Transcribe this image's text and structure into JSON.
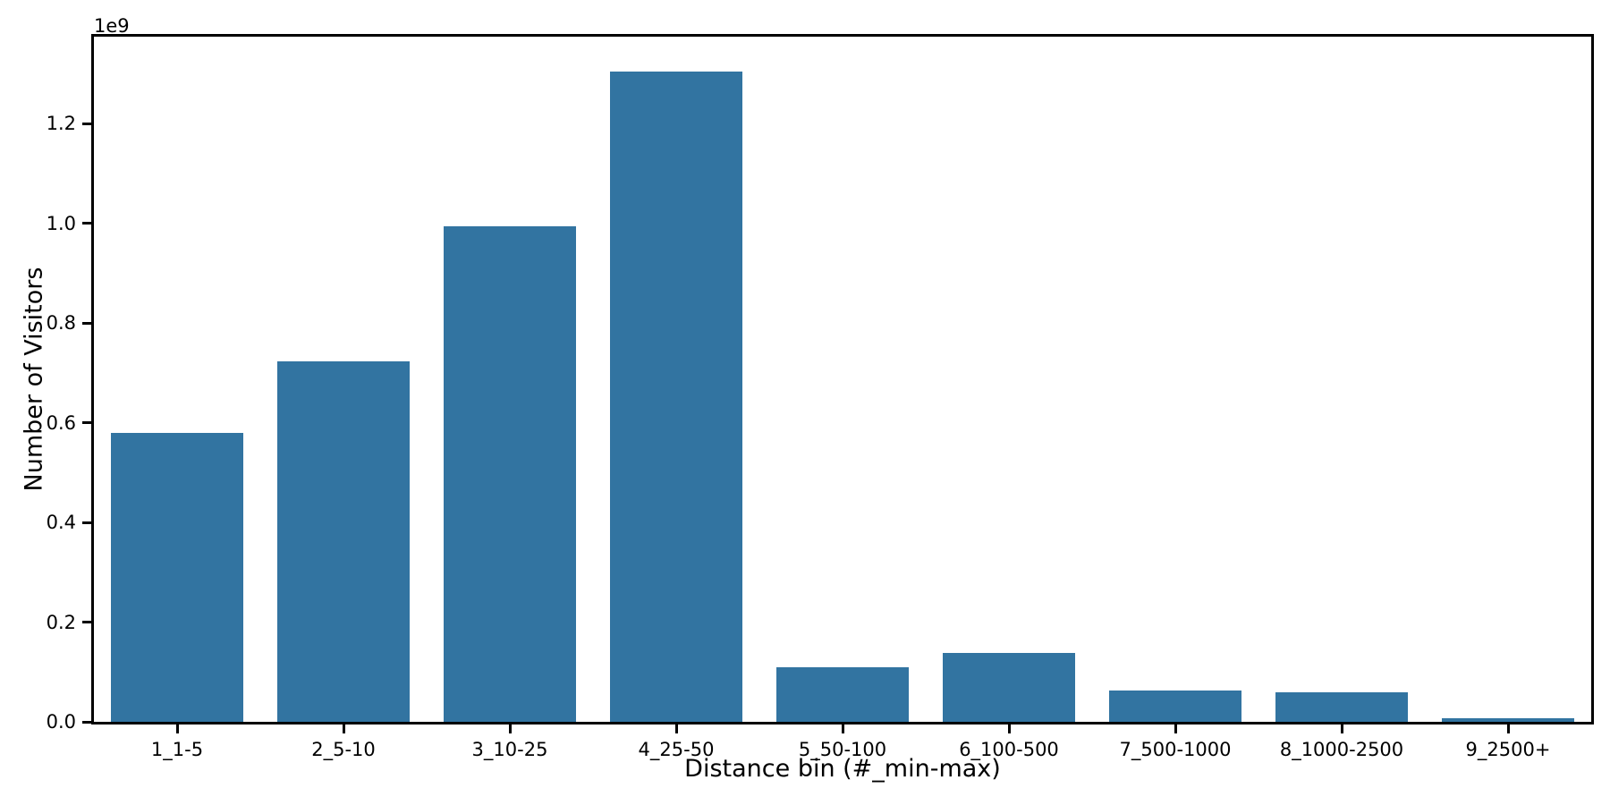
{
  "chart_data": {
    "type": "bar",
    "title": "",
    "xlabel": "Distance bin (#_min-max)",
    "ylabel": "Number of Visitors",
    "y_offset_text": "1e9",
    "categories": [
      "1_1-5",
      "2_5-10",
      "3_10-25",
      "4_25-50",
      "5_50-100",
      "6_100-500",
      "7_500-1000",
      "8_1000-2500",
      "9_2500+"
    ],
    "values": [
      579000000,
      723000000,
      995000000,
      1305000000,
      109000000,
      138000000,
      63000000,
      60000000,
      7000000
    ],
    "ylim": [
      0,
      1375000000
    ],
    "ytick_values": [
      0,
      200000000,
      400000000,
      600000000,
      800000000,
      1000000000,
      1200000000
    ],
    "ytick_labels": [
      "0.0",
      "0.2",
      "0.4",
      "0.6",
      "0.8",
      "1.0",
      "1.2"
    ],
    "bar_color": "#3274a1",
    "axis_color": "#000000",
    "text_color": "#000000",
    "background_color": "#ffffff",
    "bar_width_fraction": 0.8,
    "grid": false,
    "legend": null
  }
}
